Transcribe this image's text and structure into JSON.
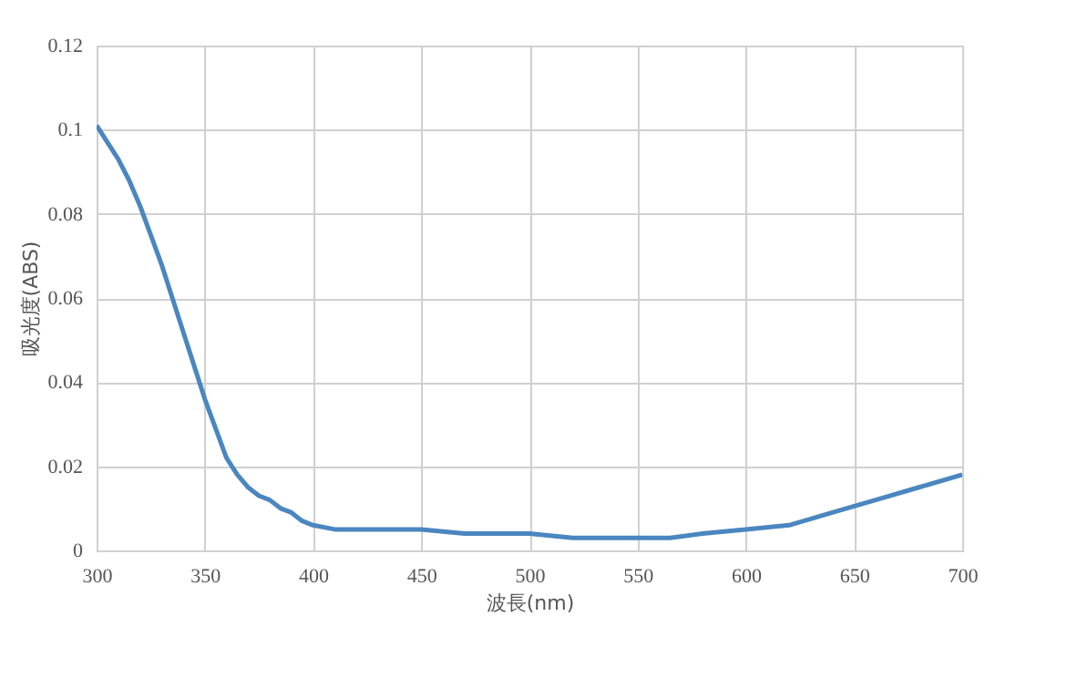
{
  "chart_data": {
    "type": "line",
    "xlabel": "波長(nm)",
    "ylabel": "吸光度(ABS)",
    "x": [
      300,
      305,
      310,
      315,
      320,
      325,
      330,
      335,
      340,
      345,
      350,
      355,
      360,
      365,
      370,
      375,
      380,
      385,
      390,
      395,
      400,
      410,
      430,
      450,
      470,
      500,
      520,
      550,
      565,
      580,
      600,
      620,
      640,
      660,
      680,
      700
    ],
    "series": [
      {
        "color": "#4a86c0",
        "values": [
          0.101,
          0.097,
          0.093,
          0.088,
          0.082,
          0.075,
          0.068,
          0.06,
          0.052,
          0.044,
          0.036,
          0.029,
          0.022,
          0.018,
          0.015,
          0.013,
          0.012,
          0.01,
          0.009,
          0.007,
          0.006,
          0.005,
          0.005,
          0.005,
          0.004,
          0.004,
          0.003,
          0.003,
          0.003,
          0.004,
          0.005,
          0.006,
          0.009,
          0.012,
          0.015,
          0.018
        ]
      }
    ],
    "xlim": [
      300,
      700
    ],
    "xticks": [
      300,
      350,
      400,
      450,
      500,
      550,
      600,
      650,
      700
    ],
    "ylim": [
      0,
      0.12
    ],
    "yticks": [
      0,
      0.02,
      0.04,
      0.06,
      0.08,
      0.1,
      0.12
    ],
    "grid": true,
    "marker": "none",
    "line_style": "solid"
  }
}
